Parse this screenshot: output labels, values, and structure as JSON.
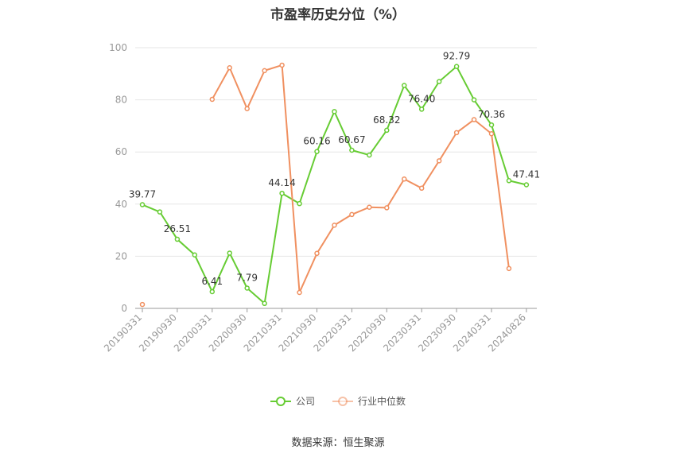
{
  "chart_data": {
    "type": "line",
    "title": "市盈率历史分位（%）",
    "ylim": [
      0,
      100
    ],
    "yticks": [
      0,
      20,
      40,
      60,
      80,
      100
    ],
    "grid": true,
    "legend_position": "bottom",
    "xtick_labels": [
      "20190331",
      "20190930",
      "20200331",
      "20200930",
      "20210331",
      "20210930",
      "20220331",
      "20220930",
      "20230331",
      "20230930",
      "20240331",
      "20240826"
    ],
    "series": [
      {
        "name": "公司",
        "color": "#66cc33",
        "values": [
          39.77,
          37.0,
          26.51,
          20.5,
          6.41,
          21.2,
          7.79,
          1.9,
          44.14,
          40.2,
          60.16,
          75.5,
          60.67,
          58.8,
          68.32,
          85.5,
          76.4,
          87.0,
          92.79,
          80.0,
          70.36,
          49.0,
          47.41
        ],
        "labels": [
          "39.77",
          "",
          "26.51",
          "",
          "6.41",
          "",
          "7.79",
          "",
          "44.14",
          "",
          "60.16",
          "",
          "60.67",
          "",
          "68.32",
          "",
          "76.40",
          "",
          "92.79",
          "",
          "70.36",
          "",
          "47.41"
        ]
      },
      {
        "name": "行业中位数",
        "color": "#f09060",
        "values": [
          1.5,
          null,
          null,
          null,
          80.2,
          92.3,
          76.6,
          91.2,
          93.3,
          6.1,
          21.1,
          31.9,
          36.0,
          38.8,
          38.6,
          49.6,
          46.1,
          56.6,
          67.4,
          72.4,
          67.0,
          15.3,
          null
        ]
      }
    ]
  },
  "source": "数据来源：恒生聚源"
}
